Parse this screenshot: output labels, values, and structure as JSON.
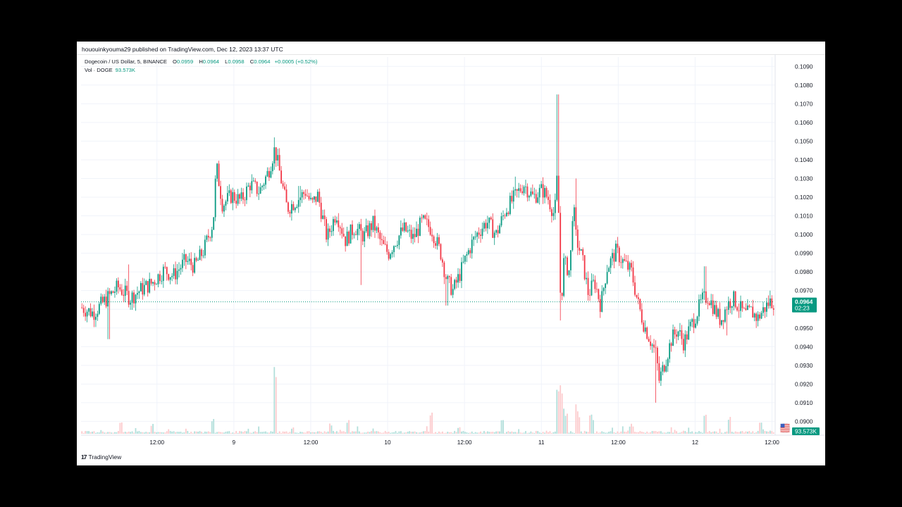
{
  "publish_line": "hououinkyouma29 published on TradingView.com, Dec 12, 2023 13:37 UTC",
  "symbol": {
    "name": "Dogecoin / US Dollar, 5, BINANCE",
    "open_label": "O",
    "open": "0.0959",
    "high_label": "H",
    "high": "0.0964",
    "low_label": "L",
    "low": "0.0958",
    "close_label": "C",
    "close": "0.0964",
    "change": "+0.0005 (+0.52%)"
  },
  "volume": {
    "label": "Vol · DOGE",
    "value": "93.573K"
  },
  "footer_brand": "TradingView",
  "footer_logo": "17",
  "colors": {
    "up": "#089981",
    "down": "#f23645",
    "up_vol": "#b2dfdb",
    "down_vol": "#fccbcd",
    "grid": "#f0f3fa"
  },
  "chart_data": {
    "type": "candlestick",
    "ylim": [
      0.0893,
      0.1095
    ],
    "y_ticks": [
      "0.1090",
      "0.1080",
      "0.1070",
      "0.1060",
      "0.1050",
      "0.1040",
      "0.1030",
      "0.1020",
      "0.1010",
      "0.1000",
      "0.0990",
      "0.0980",
      "0.0970",
      "0.0960",
      "0.0950",
      "0.0940",
      "0.0930",
      "0.0920",
      "0.0910",
      "0.0900"
    ],
    "x_ticks": [
      {
        "label": "12:00",
        "x": 0.247
      },
      {
        "label": "9",
        "x": 0.497
      },
      {
        "label": "12:00",
        "x": 0.747
      },
      {
        "label": "10",
        "x": 0.997
      },
      {
        "label": "12:00",
        "x": 1.247
      },
      {
        "label": "11",
        "x": 1.497
      },
      {
        "label": "12:00",
        "x": 1.747
      },
      {
        "label": "12",
        "x": 1.997
      },
      {
        "label": "12:00",
        "x": 2.247
      }
    ],
    "x_range": [
      0.0,
      2.255
    ],
    "last_price": "0.0964",
    "last_price_value": 0.0964,
    "countdown": "02:23",
    "volume_badge": "93.573K",
    "price_path": [
      [
        0.0,
        0.0961
      ],
      [
        0.04,
        0.0958
      ],
      [
        0.08,
        0.0965
      ],
      [
        0.12,
        0.0972
      ],
      [
        0.16,
        0.0966
      ],
      [
        0.19,
        0.097
      ],
      [
        0.23,
        0.0974
      ],
      [
        0.27,
        0.0981
      ],
      [
        0.3,
        0.0978
      ],
      [
        0.34,
        0.0986
      ],
      [
        0.37,
        0.0983
      ],
      [
        0.4,
        0.0992
      ],
      [
        0.43,
        0.1007
      ],
      [
        0.44,
        0.1037
      ],
      [
        0.46,
        0.1016
      ],
      [
        0.49,
        0.1021
      ],
      [
        0.52,
        0.1018
      ],
      [
        0.55,
        0.1027
      ],
      [
        0.58,
        0.1023
      ],
      [
        0.61,
        0.1034
      ],
      [
        0.63,
        0.1046
      ],
      [
        0.65,
        0.103
      ],
      [
        0.67,
        0.1014
      ],
      [
        0.7,
        0.1018
      ],
      [
        0.73,
        0.1023
      ],
      [
        0.75,
        0.1016
      ],
      [
        0.77,
        0.1021
      ],
      [
        0.8,
        0.0998
      ],
      [
        0.83,
        0.1012
      ],
      [
        0.86,
        0.0997
      ],
      [
        0.89,
        0.1004
      ],
      [
        0.92,
        0.0999
      ],
      [
        0.95,
        0.1006
      ],
      [
        0.98,
        0.0994
      ],
      [
        1.0,
        0.099
      ],
      [
        1.02,
        0.0996
      ],
      [
        1.05,
        0.1003
      ],
      [
        1.08,
        0.0998
      ],
      [
        1.11,
        0.1007
      ],
      [
        1.14,
        0.1003
      ],
      [
        1.17,
        0.099
      ],
      [
        1.19,
        0.0975
      ],
      [
        1.21,
        0.097
      ],
      [
        1.23,
        0.0978
      ],
      [
        1.25,
        0.0987
      ],
      [
        1.27,
        0.0995
      ],
      [
        1.29,
        0.1001
      ],
      [
        1.32,
        0.1007
      ],
      [
        1.35,
        0.1
      ],
      [
        1.38,
        0.1013
      ],
      [
        1.41,
        0.102
      ],
      [
        1.44,
        0.1027
      ],
      [
        1.47,
        0.102
      ],
      [
        1.5,
        0.1024
      ],
      [
        1.52,
        0.1019
      ],
      [
        1.54,
        0.101
      ],
      [
        1.55,
        0.1035
      ],
      [
        1.56,
        0.096
      ],
      [
        1.57,
        0.0985
      ],
      [
        1.59,
        0.098
      ],
      [
        1.6,
        0.1018
      ],
      [
        1.61,
        0.0998
      ],
      [
        1.63,
        0.0987
      ],
      [
        1.65,
        0.0968
      ],
      [
        1.67,
        0.0975
      ],
      [
        1.69,
        0.0962
      ],
      [
        1.71,
        0.0982
      ],
      [
        1.74,
        0.0991
      ],
      [
        1.76,
        0.0986
      ],
      [
        1.79,
        0.098
      ],
      [
        1.81,
        0.0964
      ],
      [
        1.83,
        0.0952
      ],
      [
        1.85,
        0.0944
      ],
      [
        1.87,
        0.0936
      ],
      [
        1.88,
        0.0922
      ],
      [
        1.9,
        0.0932
      ],
      [
        1.92,
        0.0944
      ],
      [
        1.94,
        0.0949
      ],
      [
        1.96,
        0.0942
      ],
      [
        1.98,
        0.095
      ],
      [
        2.0,
        0.0957
      ],
      [
        2.02,
        0.0965
      ],
      [
        2.04,
        0.0967
      ],
      [
        2.06,
        0.096
      ],
      [
        2.08,
        0.0954
      ],
      [
        2.1,
        0.0962
      ],
      [
        2.12,
        0.0966
      ],
      [
        2.14,
        0.0961
      ],
      [
        2.16,
        0.0957
      ],
      [
        2.18,
        0.0959
      ],
      [
        2.2,
        0.0955
      ],
      [
        2.22,
        0.096
      ],
      [
        2.24,
        0.0964
      ]
    ],
    "spikes": [
      [
        0.09,
        0.0944
      ],
      [
        0.155,
        0.0984
      ],
      [
        0.63,
        0.1052
      ],
      [
        0.71,
        0.1026
      ],
      [
        0.91,
        0.0973
      ],
      [
        1.11,
        0.1011
      ],
      [
        1.19,
        0.0962
      ],
      [
        1.41,
        0.1031
      ],
      [
        1.55,
        0.1075
      ],
      [
        1.56,
        0.0954
      ],
      [
        1.61,
        0.103
      ],
      [
        1.74,
        0.0996
      ],
      [
        1.87,
        0.091
      ],
      [
        2.03,
        0.0983
      ],
      [
        2.1,
        0.0946
      ],
      [
        2.24,
        0.097
      ]
    ],
    "volume_ylim": [
      0,
      100
    ],
    "volume_peaks": [
      [
        0.13,
        18
      ],
      [
        0.23,
        12
      ],
      [
        0.43,
        22
      ],
      [
        0.63,
        100
      ],
      [
        0.81,
        15
      ],
      [
        0.87,
        20
      ],
      [
        1.14,
        32
      ],
      [
        1.23,
        10
      ],
      [
        1.37,
        22
      ],
      [
        1.55,
        70
      ],
      [
        1.56,
        72
      ],
      [
        1.57,
        35
      ],
      [
        1.58,
        30
      ],
      [
        1.61,
        42
      ],
      [
        1.62,
        24
      ],
      [
        1.66,
        27
      ],
      [
        1.79,
        14
      ],
      [
        2.03,
        30
      ],
      [
        2.11,
        25
      ],
      [
        2.21,
        18
      ]
    ]
  }
}
